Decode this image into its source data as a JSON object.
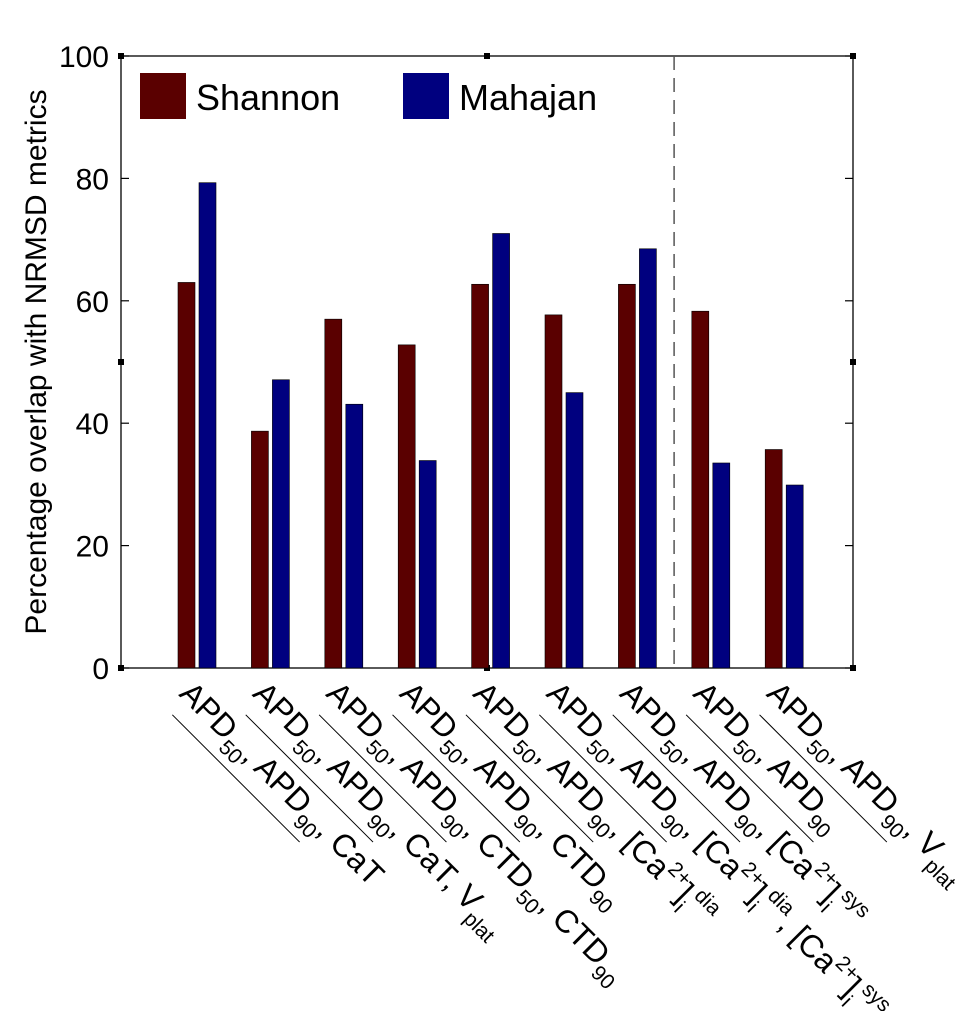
{
  "chart_data": {
    "type": "bar",
    "ylabel": "Percentage overlap with NRMSD metrics",
    "xlabel": "",
    "title": "",
    "ylim": [
      0,
      100
    ],
    "yticks": [
      0,
      20,
      40,
      60,
      80,
      100
    ],
    "ytick_labels": [
      "0",
      "20",
      "40",
      "60",
      "80",
      "100"
    ],
    "legend_position": "top-left",
    "divider_after_category_index": 6,
    "categories": [
      "APD50, APD90, CaT",
      "APD50, APD90, CaT, Vplat",
      "APD50, APD90, CTD50, CTD90",
      "APD50, APD90, CTD90",
      "APD50, APD90, [Ca2+]i dia",
      "APD50, APD90, [Ca2+]i dia, [Ca2+]i sys",
      "APD50, APD90, [Ca2+]i sys",
      "APD50, APD90",
      "APD50, APD90, Vplat"
    ],
    "category_rich": [
      [
        [
          "APD",
          ""
        ],
        [
          "50",
          "sub"
        ],
        [
          ", APD",
          ""
        ],
        [
          "90",
          "sub"
        ],
        [
          ", CaT",
          ""
        ]
      ],
      [
        [
          "APD",
          ""
        ],
        [
          "50",
          "sub"
        ],
        [
          ", APD",
          ""
        ],
        [
          "90",
          "sub"
        ],
        [
          ", CaT, V",
          ""
        ],
        [
          "plat",
          "sub"
        ]
      ],
      [
        [
          "APD",
          ""
        ],
        [
          "50",
          "sub"
        ],
        [
          ", APD",
          ""
        ],
        [
          "90",
          "sub"
        ],
        [
          ", CTD",
          ""
        ],
        [
          "50",
          "sub"
        ],
        [
          ", CTD",
          ""
        ],
        [
          "90",
          "sub"
        ]
      ],
      [
        [
          "APD",
          ""
        ],
        [
          "50",
          "sub"
        ],
        [
          ", APD",
          ""
        ],
        [
          "90",
          "sub"
        ],
        [
          ", CTD",
          ""
        ],
        [
          "90",
          "sub"
        ]
      ],
      [
        [
          "APD",
          ""
        ],
        [
          "50",
          "sub"
        ],
        [
          ", APD",
          ""
        ],
        [
          "90",
          "sub"
        ],
        [
          ", [Ca",
          ""
        ],
        [
          "2+",
          "sup"
        ],
        [
          "]",
          ""
        ],
        [
          "i",
          "sub"
        ],
        [
          "dia",
          "sup"
        ]
      ],
      [
        [
          "APD",
          ""
        ],
        [
          "50",
          "sub"
        ],
        [
          ", APD",
          ""
        ],
        [
          "90",
          "sub"
        ],
        [
          ", [Ca",
          ""
        ],
        [
          "2+",
          "sup"
        ],
        [
          "]",
          ""
        ],
        [
          "i",
          "sub"
        ],
        [
          "dia",
          "sup"
        ],
        [
          ", [Ca",
          ""
        ],
        [
          "2+",
          "sup"
        ],
        [
          "]",
          ""
        ],
        [
          "i",
          "sub"
        ],
        [
          "sys",
          "sup"
        ]
      ],
      [
        [
          "APD",
          ""
        ],
        [
          "50",
          "sub"
        ],
        [
          ", APD",
          ""
        ],
        [
          "90",
          "sub"
        ],
        [
          ", [Ca",
          ""
        ],
        [
          "2+",
          "sup"
        ],
        [
          "]",
          ""
        ],
        [
          "i",
          "sub"
        ],
        [
          "sys",
          "sup"
        ]
      ],
      [
        [
          "APD",
          ""
        ],
        [
          "50",
          "sub"
        ],
        [
          ", APD",
          ""
        ],
        [
          "90",
          "sub"
        ]
      ],
      [
        [
          "APD",
          ""
        ],
        [
          "50",
          "sub"
        ],
        [
          ", APD",
          ""
        ],
        [
          "90",
          "sub"
        ],
        [
          ", V",
          ""
        ],
        [
          "plat",
          "sub"
        ]
      ]
    ],
    "series": [
      {
        "name": "Shannon",
        "color": "#5a0000",
        "values": [
          63,
          38.7,
          57,
          52.8,
          62.7,
          57.7,
          62.7,
          58.3,
          35.7
        ]
      },
      {
        "name": "Mahajan",
        "color": "#00007f",
        "values": [
          79.3,
          47.1,
          43.1,
          33.9,
          71,
          45,
          68.5,
          33.5,
          29.9
        ]
      }
    ]
  }
}
